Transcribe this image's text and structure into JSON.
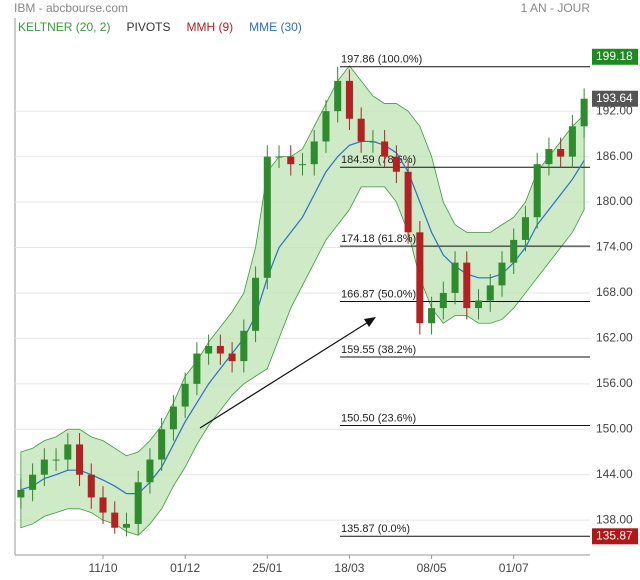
{
  "header": {
    "title": "IBM - abcbourse.com",
    "period": "1 AN - JOUR"
  },
  "chart_data": {
    "type": "candlestick",
    "legend": [
      {
        "name": "KELTNER (20, 2)",
        "color": "#3a9a3a"
      },
      {
        "name": "PIVOTS",
        "color": "#333333"
      },
      {
        "name": "MMH (9)",
        "color": "#b22222"
      },
      {
        "name": "MME (30)",
        "color": "#2a6fc9"
      }
    ],
    "categories": [
      null,
      null,
      null,
      null,
      null,
      null,
      null,
      "11/10",
      null,
      null,
      null,
      null,
      null,
      null,
      "01/12",
      null,
      null,
      null,
      null,
      null,
      null,
      "25/01",
      null,
      null,
      null,
      null,
      null,
      null,
      "18/03",
      null,
      null,
      null,
      null,
      null,
      null,
      "08/05",
      null,
      null,
      null,
      null,
      null,
      null,
      "01/07",
      null,
      null,
      null,
      null,
      null,
      null
    ],
    "open": [
      141,
      142,
      144,
      146,
      146,
      148,
      144,
      141,
      139,
      137,
      137.5,
      143,
      146,
      150,
      153,
      156,
      160,
      161,
      160,
      159,
      163,
      170,
      186,
      186,
      185,
      185,
      188,
      192,
      196,
      191,
      188,
      188,
      186,
      184,
      176,
      164,
      166,
      168,
      172,
      166,
      167,
      169,
      172,
      175,
      178,
      185,
      187,
      186,
      190
    ],
    "high": [
      143.5,
      145.5,
      147.5,
      147.5,
      149.5,
      149.5,
      145.5,
      142.5,
      140.5,
      139,
      144.5,
      147.5,
      151.5,
      154.5,
      157.5,
      161.5,
      162.5,
      162.5,
      161.5,
      164.5,
      171.5,
      187.5,
      187.5,
      187.5,
      186.5,
      189.5,
      193.5,
      197.86,
      197.5,
      192.5,
      189.5,
      189.5,
      187.5,
      185.5,
      177.5,
      167.5,
      169.5,
      173.5,
      173.5,
      168.5,
      170.5,
      173.5,
      176.5,
      179.5,
      186.5,
      188.5,
      188.5,
      191.5,
      195
    ],
    "low": [
      139.5,
      140.5,
      142.5,
      144.5,
      144.5,
      142.5,
      139.5,
      137.5,
      136.2,
      135.87,
      136,
      141.5,
      144.5,
      148.5,
      151.5,
      154.5,
      158.5,
      158.5,
      157.5,
      157.5,
      161.5,
      168.5,
      184.5,
      183.5,
      183.5,
      183.5,
      186.5,
      190.5,
      189.5,
      186.5,
      186.5,
      184.5,
      182.5,
      174.5,
      162.5,
      162.5,
      164.5,
      166.5,
      164.5,
      164.5,
      165.5,
      167.5,
      170.5,
      173.5,
      176.5,
      183.5,
      184.5,
      184.5,
      188.5
    ],
    "close": [
      142,
      144,
      146,
      146,
      148,
      144,
      141,
      139,
      137,
      137.5,
      143,
      146,
      150,
      153,
      156,
      160,
      161,
      160,
      159,
      163,
      170,
      186,
      186,
      185,
      185,
      188,
      192,
      196,
      191,
      188,
      188,
      186,
      184,
      176,
      164,
      166,
      168,
      172,
      166,
      167,
      169,
      172,
      175,
      178,
      185,
      187,
      186,
      190,
      193.64
    ],
    "up_color": "#2e8b2e",
    "down_color": "#b22222",
    "keltner": {
      "color": "#3a9a3a",
      "upper": [
        147,
        147.5,
        148.5,
        149,
        150,
        150,
        149,
        148.5,
        147.5,
        146.5,
        147,
        148.5,
        150.5,
        153.5,
        157,
        159,
        161.5,
        163.5,
        165.5,
        168,
        174,
        184,
        186,
        186,
        187,
        190,
        193,
        196,
        198,
        196,
        194,
        193,
        193,
        192,
        190,
        186,
        180,
        177,
        176,
        176,
        176,
        177,
        178,
        180,
        184,
        186,
        188,
        190,
        191.5
      ],
      "lower": [
        137,
        137.5,
        138.5,
        139,
        139.5,
        139.5,
        139,
        138,
        137.5,
        136.5,
        136,
        137.5,
        139.5,
        142.5,
        145,
        148,
        150.5,
        152.5,
        154.5,
        156,
        157,
        158,
        162,
        166,
        169,
        172,
        175,
        177,
        179,
        182,
        182,
        182,
        180,
        176,
        170,
        166,
        164,
        165,
        165,
        164,
        164,
        164.5,
        166,
        168,
        170,
        172,
        174,
        176,
        179
      ]
    },
    "mme": {
      "color": "#2a6fc9",
      "values": [
        142,
        142.5,
        143.5,
        144,
        144.6,
        144.6,
        144,
        143.3,
        142.5,
        141.5,
        141.5,
        143,
        145,
        148,
        151,
        153.5,
        156,
        158,
        160,
        162,
        165,
        170,
        174,
        176,
        178,
        181,
        184,
        186,
        187.5,
        188,
        188,
        187.5,
        186.5,
        184,
        180,
        176,
        173,
        171.5,
        170.5,
        170,
        170,
        170.5,
        172,
        174,
        177,
        179,
        181,
        183,
        185.5
      ]
    },
    "fibonacci": [
      {
        "value": 197.86,
        "label": "197.86  (100.0%)"
      },
      {
        "value": 184.59,
        "label": "184.59  (78.6%)"
      },
      {
        "value": 174.18,
        "label": "174.18  (61.8%)"
      },
      {
        "value": 166.87,
        "label": "166.87  (50.0%)"
      },
      {
        "value": 159.55,
        "label": "159.55  (38.2%)"
      },
      {
        "value": 150.5,
        "label": "150.50  (23.6%)"
      },
      {
        "value": 135.87,
        "label": "135.87  (0.0%)"
      }
    ],
    "price_tags": [
      {
        "value": 199.18,
        "color": "#1f8a1f"
      },
      {
        "value": 193.64,
        "color": "#555555"
      },
      {
        "value": 135.87,
        "color": "#b01818"
      }
    ],
    "ylim": [
      133.4,
      204.3
    ],
    "yticks": [
      {
        "value": 138,
        "label": "138.00"
      },
      {
        "value": 144,
        "label": "144.00"
      },
      {
        "value": 150,
        "label": "150.00"
      },
      {
        "value": 156,
        "label": "156.00"
      },
      {
        "value": 162,
        "label": "162.00"
      },
      {
        "value": 168,
        "label": "168.00"
      },
      {
        "value": 174,
        "label": "174.00"
      },
      {
        "value": 180,
        "label": "180.00"
      },
      {
        "value": 186,
        "label": "186.00"
      },
      {
        "value": 192,
        "label": "192.00"
      }
    ],
    "grid": true
  }
}
